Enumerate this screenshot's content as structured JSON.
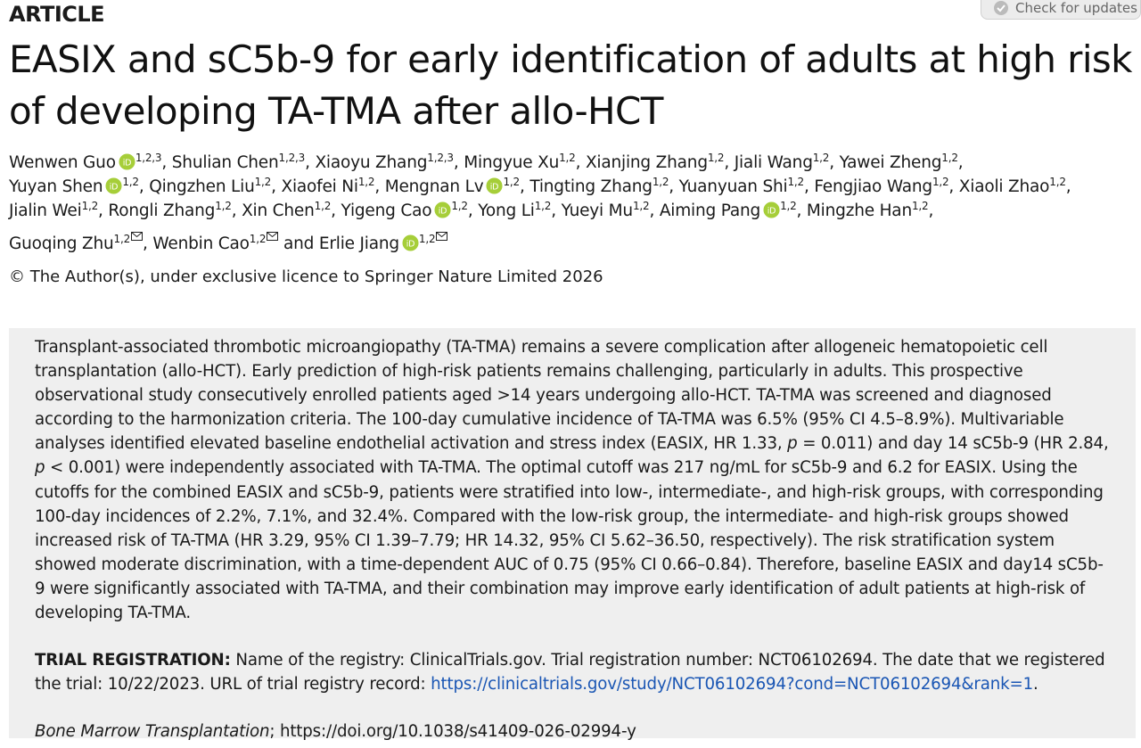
{
  "header": {
    "label": "ARTICLE",
    "check_updates": "Check for updates"
  },
  "title": "EASIX and sC5b-9 for early identification of adults at high risk of developing TA-TMA after allo-HCT",
  "authors": [
    {
      "name": "Wenwen Guo",
      "orcid": true,
      "sup": "1,2,3",
      "sep": ", "
    },
    {
      "name": "Shulian Chen",
      "sup": "1,2,3",
      "sep": ", "
    },
    {
      "name": "Xiaoyu Zhang",
      "sup": "1,2,3",
      "sep": ", "
    },
    {
      "name": "Mingyue Xu",
      "sup": "1,2",
      "sep": ", "
    },
    {
      "name": "Xianjing Zhang",
      "sup": "1,2",
      "sep": ", "
    },
    {
      "name": "Jiali Wang",
      "sup": "1,2",
      "sep": ", "
    },
    {
      "name": "Yawei Zheng",
      "sup": "1,2",
      "sep": ","
    },
    {
      "name": "Yuyan Shen",
      "orcid": true,
      "sup": "1,2",
      "sep": ", "
    },
    {
      "name": "Qingzhen Liu",
      "sup": "1,2",
      "sep": ", "
    },
    {
      "name": "Xiaofei Ni",
      "sup": "1,2",
      "sep": ", "
    },
    {
      "name": "Mengnan Lv",
      "orcid": true,
      "sup": "1,2",
      "sep": ", "
    },
    {
      "name": "Tingting Zhang",
      "sup": "1,2",
      "sep": ", "
    },
    {
      "name": "Yuanyuan Shi",
      "sup": "1,2",
      "sep": ", "
    },
    {
      "name": "Fengjiao Wang",
      "sup": "1,2",
      "sep": ", "
    },
    {
      "name": "Xiaoli Zhao",
      "sup": "1,2",
      "sep": ","
    },
    {
      "name": "Jialin Wei",
      "sup": "1,2",
      "sep": ", "
    },
    {
      "name": "Rongli Zhang",
      "sup": "1,2",
      "sep": ", "
    },
    {
      "name": "Xin Chen",
      "sup": "1,2",
      "sep": ", "
    },
    {
      "name": "Yigeng Cao",
      "orcid": true,
      "sup": "1,2",
      "sep": ", "
    },
    {
      "name": "Yong Li",
      "sup": "1,2",
      "sep": ", "
    },
    {
      "name": "Yueyi Mu",
      "sup": "1,2",
      "sep": ", "
    },
    {
      "name": "Aiming Pang",
      "orcid": true,
      "sup": "1,2",
      "sep": ", "
    },
    {
      "name": "Mingzhe Han",
      "sup": "1,2",
      "sep": ","
    },
    {
      "name": "Guoqing Zhu",
      "sup": "1,2",
      "corresponding": true,
      "sep": ", "
    },
    {
      "name": "Wenbin Cao",
      "sup": "1,2",
      "corresponding": true,
      "sep": " and "
    },
    {
      "name": "Erlie Jiang",
      "orcid": true,
      "sup": "1,2",
      "corresponding": true
    }
  ],
  "copyright": "© The Author(s), under exclusive licence to Springer Nature Limited 2026",
  "abstract": {
    "runs": [
      {
        "text": "Transplant-associated thrombotic microangiopathy (TA-TMA) remains a severe complication after allogeneic hematopoietic cell transplantation (allo-HCT). Early prediction of high-risk patients remains challenging, particularly in adults. This prospective observational study consecutively enrolled patients aged >14 years undergoing allo-HCT. TA-TMA was screened and diagnosed according to the harmonization criteria. The 100-day cumulative incidence of TA-TMA was 6.5% (95% CI 4.5–8.9%). Multivariable analyses identified elevated baseline endothelial activation and stress index (EASIX, HR 1.33, "
      },
      {
        "text": "p",
        "italic": true
      },
      {
        "text": " = 0.011) and day 14 sC5b-9 (HR 2.84, "
      },
      {
        "text": "p",
        "italic": true
      },
      {
        "text": " < 0.001) were independently associated with TA-TMA. The optimal cutoff was 217 ng/mL for sC5b-9 and 6.2 for EASIX. Using the cutoffs for the combined EASIX and sC5b-9, patients were stratified into low-, intermediate-, and high-risk groups, with corresponding 100-day incidences of 2.2%, 7.1%, and 32.4%. Compared with the low-risk group, the intermediate- and high-risk groups showed increased risk of TA-TMA (HR 3.29, 95% CI 1.39–7.79; HR 14.32, 95% CI 5.62–36.50, respectively). The risk stratification system showed moderate discrimination, with a time-dependent AUC of 0.75 (95% CI 0.66–0.84). Therefore, baseline EASIX and day14 sC5b-9 were significantly associated with TA-TMA, and their combination may improve early identification of adult patients at high-risk of developing TA-TMA."
      }
    ]
  },
  "trial": {
    "label": "TRIAL REGISTRATION:",
    "text": " Name of the registry: ClinicalTrials.gov. Trial registration number: NCT06102694. The date that we registered the trial: 10/22/2023. URL of trial registry record: ",
    "link": "https://clinicaltrials.gov/study/NCT06102694?cond=NCT06102694&rank=1",
    "after": "."
  },
  "citation": {
    "journal": "Bone Marrow Transplantation",
    "rest": "; https://doi.org/10.1038/s41409-026-02994-y"
  }
}
